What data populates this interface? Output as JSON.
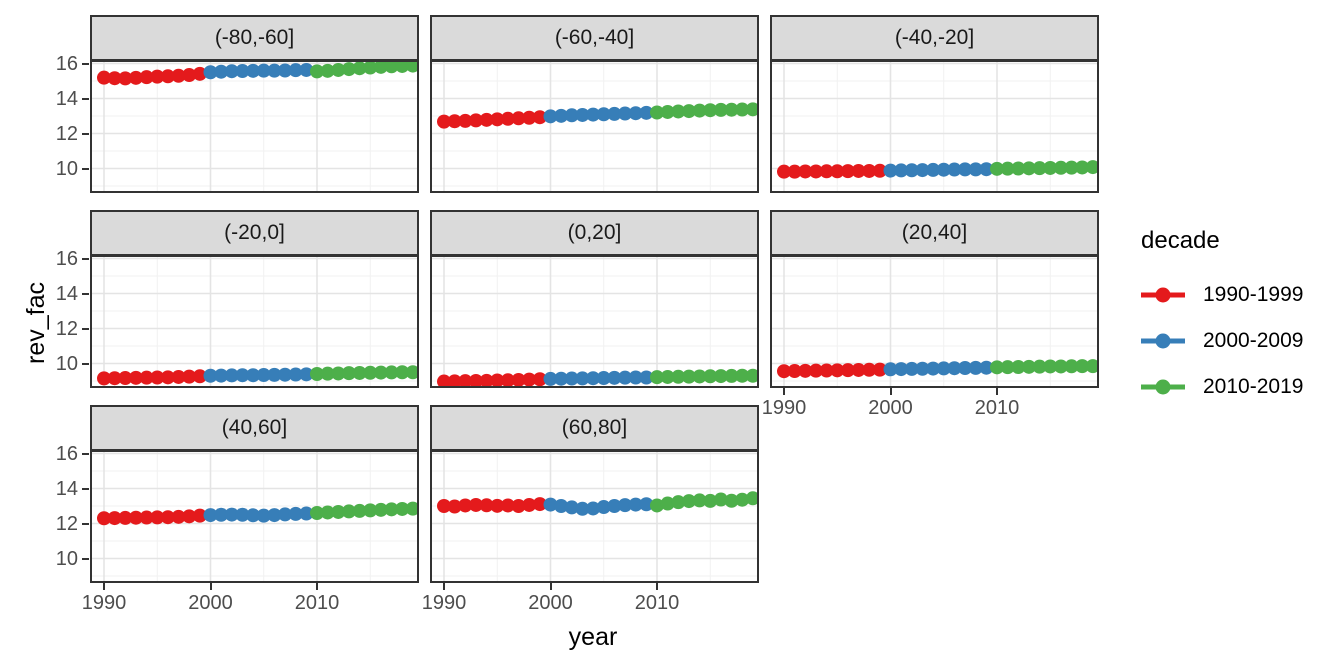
{
  "figure": {
    "y_axis_title": "rev_fac",
    "x_axis_title": "year",
    "legend": {
      "title": "decade",
      "entries": [
        {
          "label": "1990-1999",
          "color": "#E41A1C"
        },
        {
          "label": "2000-2009",
          "color": "#377EB8"
        },
        {
          "label": "2010-2019",
          "color": "#4DAF4A"
        }
      ]
    }
  },
  "chart_data": {
    "type": "scatter",
    "title": "",
    "xlabel": "year",
    "ylabel": "rev_fac",
    "grid": true,
    "legend_position": "right",
    "legend_title": "decade",
    "x_start_year": 1990,
    "x_end_year": 2019,
    "x_ticks": [
      1990,
      2000,
      2010
    ],
    "x_minor_ticks": [
      1995,
      2005,
      2015
    ],
    "y_ticks": [
      10,
      12,
      14,
      16
    ],
    "y_minor_ticks": [
      9,
      11,
      13,
      15
    ],
    "x_domain": [
      1988.7,
      2019.6
    ],
    "y_domain": [
      8.6,
      16.2
    ],
    "series": [
      {
        "name": "1990-1999",
        "years": "1990-1999",
        "color": "#E41A1C"
      },
      {
        "name": "2000-2009",
        "years": "2000-2009",
        "color": "#377EB8"
      },
      {
        "name": "2010-2019",
        "years": "2010-2019",
        "color": "#4DAF4A"
      }
    ],
    "facets": [
      {
        "label": "(-80,-60]",
        "values": [
          15.19,
          15.16,
          15.15,
          15.18,
          15.22,
          15.25,
          15.27,
          15.3,
          15.34,
          15.41,
          15.5,
          15.53,
          15.56,
          15.57,
          15.58,
          15.59,
          15.59,
          15.6,
          15.62,
          15.63,
          15.55,
          15.58,
          15.63,
          15.68,
          15.73,
          15.77,
          15.81,
          15.84,
          15.86,
          15.88
        ]
      },
      {
        "label": "(-60,-40]",
        "values": [
          12.68,
          12.7,
          12.72,
          12.75,
          12.78,
          12.81,
          12.84,
          12.87,
          12.9,
          12.93,
          12.98,
          13.01,
          13.04,
          13.06,
          13.08,
          13.1,
          13.12,
          13.14,
          13.16,
          13.18,
          13.2,
          13.23,
          13.26,
          13.28,
          13.31,
          13.33,
          13.35,
          13.36,
          13.37,
          13.38
        ]
      },
      {
        "label": "(-40,-20]",
        "values": [
          9.82,
          9.82,
          9.83,
          9.83,
          9.84,
          9.84,
          9.85,
          9.86,
          9.86,
          9.87,
          9.88,
          9.89,
          9.9,
          9.91,
          9.92,
          9.93,
          9.94,
          9.95,
          9.95,
          9.96,
          9.98,
          9.99,
          10.0,
          10.01,
          10.02,
          10.03,
          10.04,
          10.05,
          10.06,
          10.08
        ]
      },
      {
        "label": "(-20,0]",
        "values": [
          9.15,
          9.16,
          9.17,
          9.18,
          9.19,
          9.2,
          9.21,
          9.23,
          9.25,
          9.27,
          9.3,
          9.31,
          9.32,
          9.33,
          9.33,
          9.34,
          9.35,
          9.36,
          9.37,
          9.38,
          9.4,
          9.42,
          9.43,
          9.45,
          9.46,
          9.47,
          9.48,
          9.49,
          9.5,
          9.5
        ]
      },
      {
        "label": "(0,20]",
        "values": [
          8.97,
          8.98,
          8.99,
          9.0,
          9.01,
          9.03,
          9.04,
          9.06,
          9.08,
          9.1,
          9.12,
          9.13,
          9.14,
          9.15,
          9.16,
          9.17,
          9.18,
          9.19,
          9.2,
          9.2,
          9.22,
          9.23,
          9.24,
          9.25,
          9.26,
          9.27,
          9.28,
          9.29,
          9.3,
          9.3
        ]
      },
      {
        "label": "(20,40]",
        "values": [
          9.56,
          9.57,
          9.58,
          9.59,
          9.6,
          9.61,
          9.62,
          9.63,
          9.64,
          9.65,
          9.67,
          9.68,
          9.69,
          9.7,
          9.71,
          9.72,
          9.73,
          9.74,
          9.75,
          9.76,
          9.78,
          9.79,
          9.8,
          9.81,
          9.82,
          9.83,
          9.83,
          9.84,
          9.85,
          9.85
        ]
      },
      {
        "label": "(40,60]",
        "values": [
          12.3,
          12.31,
          12.32,
          12.33,
          12.34,
          12.35,
          12.36,
          12.38,
          12.41,
          12.45,
          12.48,
          12.5,
          12.51,
          12.5,
          12.47,
          12.45,
          12.48,
          12.52,
          12.55,
          12.57,
          12.6,
          12.63,
          12.66,
          12.69,
          12.72,
          12.75,
          12.78,
          12.81,
          12.83,
          12.85
        ]
      },
      {
        "label": "(60,80]",
        "values": [
          13.0,
          12.97,
          13.03,
          13.06,
          13.04,
          13.01,
          13.03,
          13.0,
          13.06,
          13.11,
          13.08,
          13.0,
          12.92,
          12.84,
          12.86,
          12.94,
          13.0,
          13.05,
          13.08,
          13.1,
          13.03,
          13.14,
          13.22,
          13.28,
          13.32,
          13.29,
          13.37,
          13.3,
          13.36,
          13.44
        ]
      }
    ]
  },
  "colors": {
    "strip_background": "#DADADA",
    "panel_border": "#333333",
    "grid_major": "#E4E4E4",
    "grid_minor": "#F1F1F1",
    "tick_text": "#4D4D4D",
    "point_red": "#E41A1C",
    "point_blue": "#377EB8",
    "point_green": "#4DAF4A"
  }
}
